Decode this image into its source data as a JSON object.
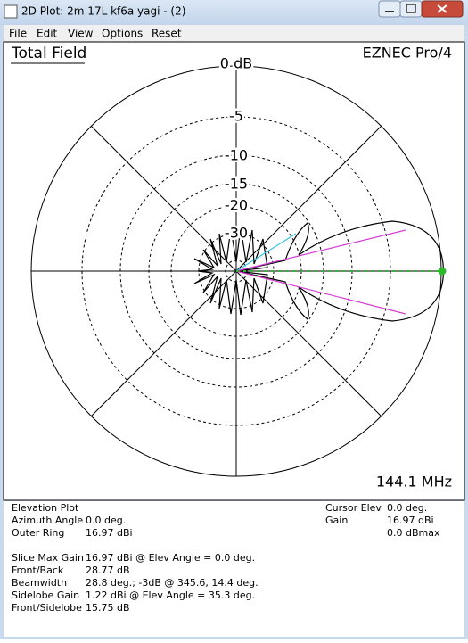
{
  "window": {
    "title": "2D Plot: 2m 17L kf6a yagi - (2)"
  },
  "menu": [
    "File",
    "Edit",
    "View",
    "Options",
    "Reset"
  ],
  "plot": {
    "title": "Total Field",
    "brand": "EZNEC Pro/4",
    "ring_labels": [
      "0 dB",
      "-5",
      "-10",
      "-15",
      "-20",
      "-30"
    ],
    "frequency": "144.1 MHz"
  },
  "info": {
    "plot_type": "Elevation Plot",
    "left": [
      {
        "label": "Azimuth Angle",
        "value": "0.0 deg."
      },
      {
        "label": "Outer Ring",
        "value": "16.97 dBi"
      }
    ],
    "stats": [
      {
        "label": "Slice Max Gain",
        "value": "16.97 dBi @ Elev Angle = 0.0 deg."
      },
      {
        "label": "Front/Back",
        "value": "28.77 dB"
      },
      {
        "label": "Beamwidth",
        "value": "28.8 deg.; -3dB @ 345.6, 14.4 deg."
      },
      {
        "label": "Sidelobe Gain",
        "value": "1.22 dBi @ Elev Angle = 35.3 deg."
      },
      {
        "label": "Front/Sidelobe",
        "value": "15.75 dB"
      }
    ],
    "right": [
      {
        "label": "Cursor Elev",
        "value": "0.0 deg."
      },
      {
        "label": "Gain",
        "value": "16.97 dBi"
      }
    ],
    "right_extra": "0.0 dBmax"
  }
}
